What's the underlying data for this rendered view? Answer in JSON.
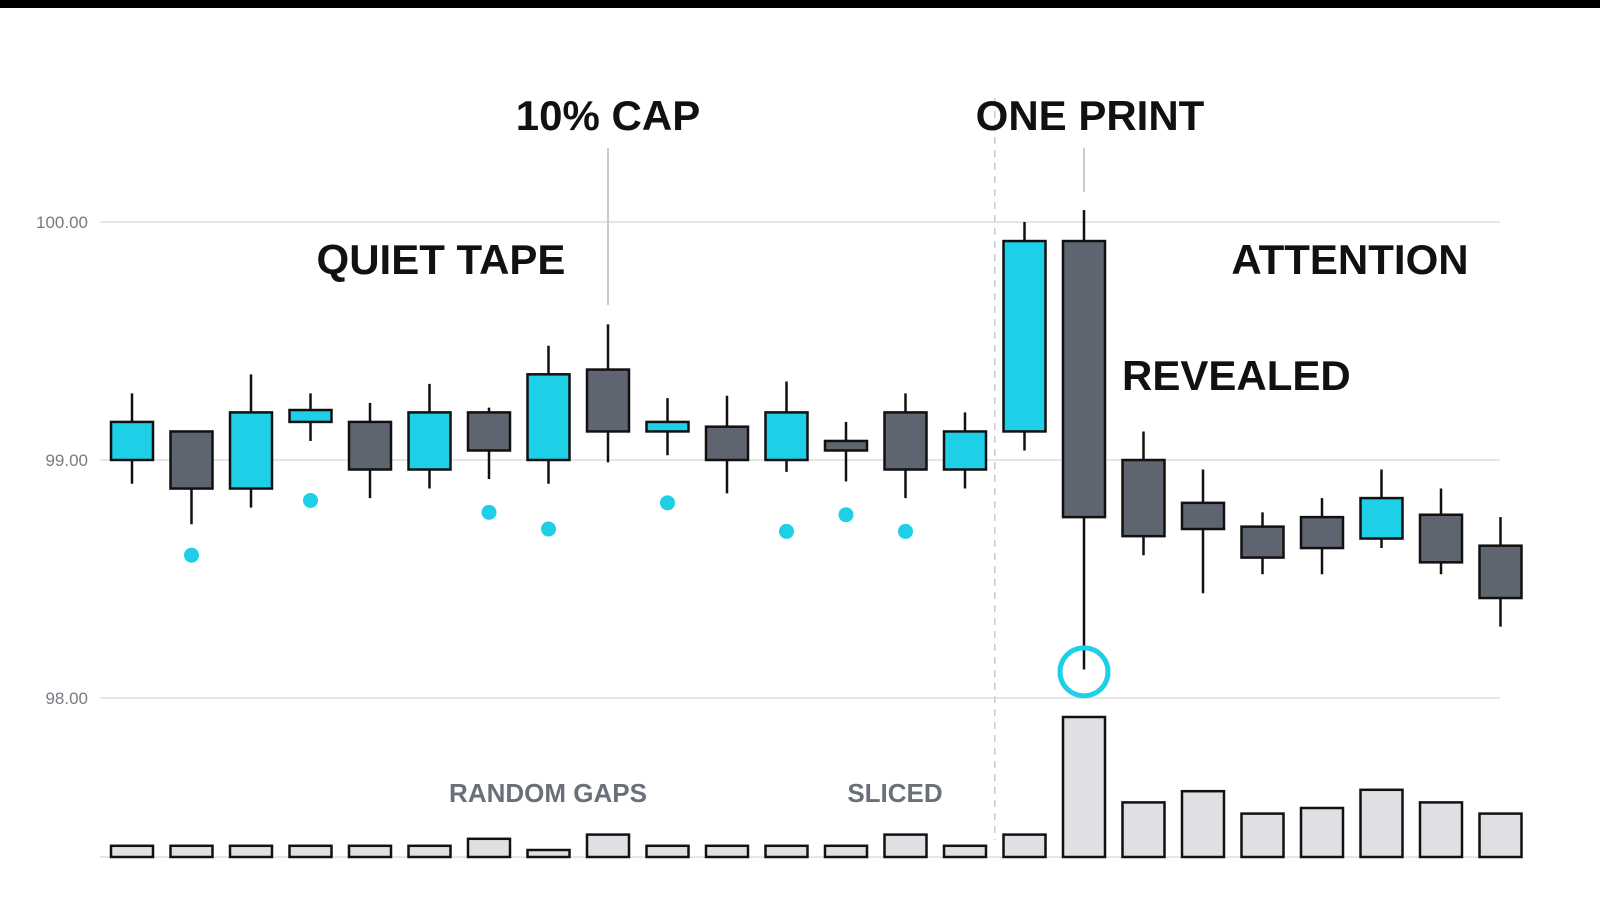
{
  "chart_data": {
    "type": "candlestick",
    "title": "",
    "y_ticks": [
      {
        "value": 100.0,
        "label": "100.00"
      },
      {
        "value": 99.0,
        "label": "99.00"
      },
      {
        "value": 98.0,
        "label": "98.00"
      }
    ],
    "ylim": [
      97.95,
      100.5
    ],
    "grid": true,
    "candles": [
      {
        "open": 99.0,
        "high": 99.28,
        "low": 98.9,
        "close": 99.16,
        "direction": "up"
      },
      {
        "open": 99.12,
        "high": 99.12,
        "low": 98.73,
        "close": 98.88,
        "direction": "down"
      },
      {
        "open": 98.88,
        "high": 99.36,
        "low": 98.8,
        "close": 99.2,
        "direction": "up"
      },
      {
        "open": 99.16,
        "high": 99.28,
        "low": 99.08,
        "close": 99.21,
        "direction": "up"
      },
      {
        "open": 99.16,
        "high": 99.24,
        "low": 98.84,
        "close": 98.96,
        "direction": "down"
      },
      {
        "open": 98.96,
        "high": 99.32,
        "low": 98.88,
        "close": 99.2,
        "direction": "up"
      },
      {
        "open": 99.2,
        "high": 99.22,
        "low": 98.92,
        "close": 99.04,
        "direction": "down"
      },
      {
        "open": 99.0,
        "high": 99.48,
        "low": 98.9,
        "close": 99.36,
        "direction": "up"
      },
      {
        "open": 99.38,
        "high": 99.57,
        "low": 98.99,
        "close": 99.12,
        "direction": "down"
      },
      {
        "open": 99.12,
        "high": 99.26,
        "low": 99.02,
        "close": 99.16,
        "direction": "up"
      },
      {
        "open": 99.14,
        "high": 99.27,
        "low": 98.86,
        "close": 99.0,
        "direction": "down"
      },
      {
        "open": 99.0,
        "high": 99.33,
        "low": 98.95,
        "close": 99.2,
        "direction": "up"
      },
      {
        "open": 99.08,
        "high": 99.16,
        "low": 98.91,
        "close": 99.04,
        "direction": "down"
      },
      {
        "open": 99.2,
        "high": 99.28,
        "low": 98.84,
        "close": 98.96,
        "direction": "down"
      },
      {
        "open": 98.96,
        "high": 99.2,
        "low": 98.88,
        "close": 99.12,
        "direction": "up"
      },
      {
        "open": 99.12,
        "high": 100.0,
        "low": 99.04,
        "close": 99.92,
        "direction": "up"
      },
      {
        "open": 99.92,
        "high": 100.05,
        "low": 98.12,
        "close": 98.76,
        "direction": "down"
      },
      {
        "open": 99.0,
        "high": 99.12,
        "low": 98.6,
        "close": 98.68,
        "direction": "down"
      },
      {
        "open": 98.82,
        "high": 98.96,
        "low": 98.44,
        "close": 98.71,
        "direction": "down"
      },
      {
        "open": 98.72,
        "high": 98.78,
        "low": 98.52,
        "close": 98.59,
        "direction": "down"
      },
      {
        "open": 98.76,
        "high": 98.84,
        "low": 98.52,
        "close": 98.63,
        "direction": "down"
      },
      {
        "open": 98.67,
        "high": 98.96,
        "low": 98.63,
        "close": 98.84,
        "direction": "up"
      },
      {
        "open": 98.77,
        "high": 98.88,
        "low": 98.52,
        "close": 98.57,
        "direction": "down"
      },
      {
        "open": 98.64,
        "high": 98.76,
        "low": 98.3,
        "close": 98.42,
        "direction": "down"
      }
    ],
    "volume": [
      0.08,
      0.08,
      0.08,
      0.08,
      0.08,
      0.08,
      0.13,
      0.05,
      0.16,
      0.08,
      0.08,
      0.08,
      0.08,
      0.16,
      0.08,
      0.16,
      1.0,
      0.39,
      0.47,
      0.31,
      0.35,
      0.48,
      0.39,
      0.31
    ],
    "dot_markers": [
      {
        "candle": 1,
        "value": 98.6
      },
      {
        "candle": 3,
        "value": 98.83
      },
      {
        "candle": 6,
        "value": 98.78
      },
      {
        "candle": 7,
        "value": 98.71
      },
      {
        "candle": 9,
        "value": 98.82
      },
      {
        "candle": 11,
        "value": 98.7
      },
      {
        "candle": 12,
        "value": 98.77
      },
      {
        "candle": 13,
        "value": 98.7
      }
    ],
    "ring_marker": {
      "candle": 16,
      "value": 98.11
    },
    "regime_split_after_candle": 14,
    "annotations": {
      "quiet_tape": "QUIET TAPE",
      "cap": "10% CAP",
      "one_print": "ONE PRINT",
      "attention": "ATTENTION",
      "revealed": "REVEALED",
      "random_gaps": "RANDOM GAPS",
      "sliced": "SLICED"
    },
    "colors": {
      "up": "#1ecfe8",
      "down": "#5f6570",
      "dot": "#1ecfe8",
      "outline": "#111111",
      "volume_bar": "#dfe0e3",
      "grid": "#dcdde0",
      "divider": "#c9cacd"
    }
  }
}
